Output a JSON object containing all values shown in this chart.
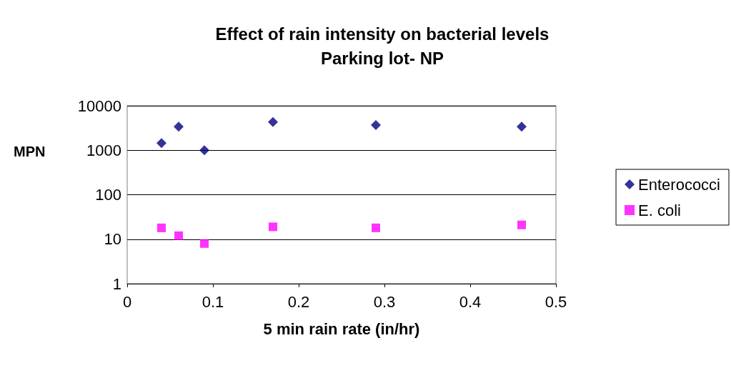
{
  "chart_data": {
    "type": "scatter",
    "title": "Effect of rain intensity on bacterial levels",
    "subtitle": "Parking lot- NP",
    "xlabel": "5 min rain rate (in/hr)",
    "ylabel": "MPN",
    "x": [
      0.04,
      0.06,
      0.09,
      0.17,
      0.29,
      0.46
    ],
    "series": [
      {
        "name": "Enterococci",
        "color": "#000080",
        "marker": "diamond",
        "values": [
          1450,
          3400,
          1000,
          4300,
          3700,
          3400
        ]
      },
      {
        "name": "E. coli",
        "color": "#ff00ff",
        "marker": "square",
        "values": [
          18,
          12,
          8,
          19,
          18,
          21
        ]
      }
    ],
    "xlim": [
      0,
      0.5
    ],
    "xticks": [
      0,
      0.1,
      0.2,
      0.3,
      0.4,
      0.5
    ],
    "ylim": [
      1,
      10000
    ],
    "yticks": [
      1,
      10,
      100,
      1000,
      10000
    ],
    "log": "y",
    "grid": "y",
    "legend": "right"
  }
}
